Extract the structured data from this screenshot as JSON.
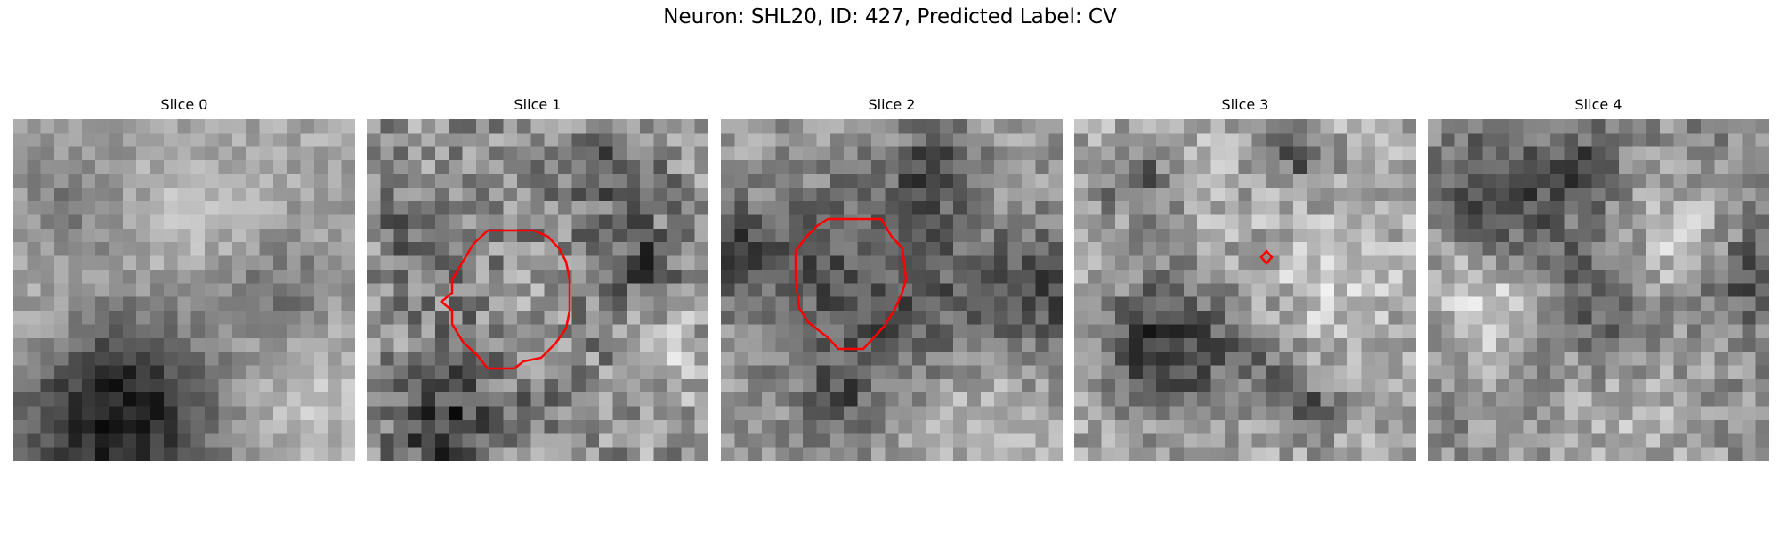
{
  "figure": {
    "title": "Neuron: SHL20, ID: 427, Predicted Label: CV",
    "contour_color": "#ff0000",
    "colormap": "gray",
    "panels": [
      {
        "label": "Slice 0",
        "has_contour": false
      },
      {
        "label": "Slice 1",
        "has_contour": true
      },
      {
        "label": "Slice 2",
        "has_contour": true
      },
      {
        "label": "Slice 3",
        "has_contour": true
      },
      {
        "label": "Slice 4",
        "has_contour": false
      }
    ]
  }
}
